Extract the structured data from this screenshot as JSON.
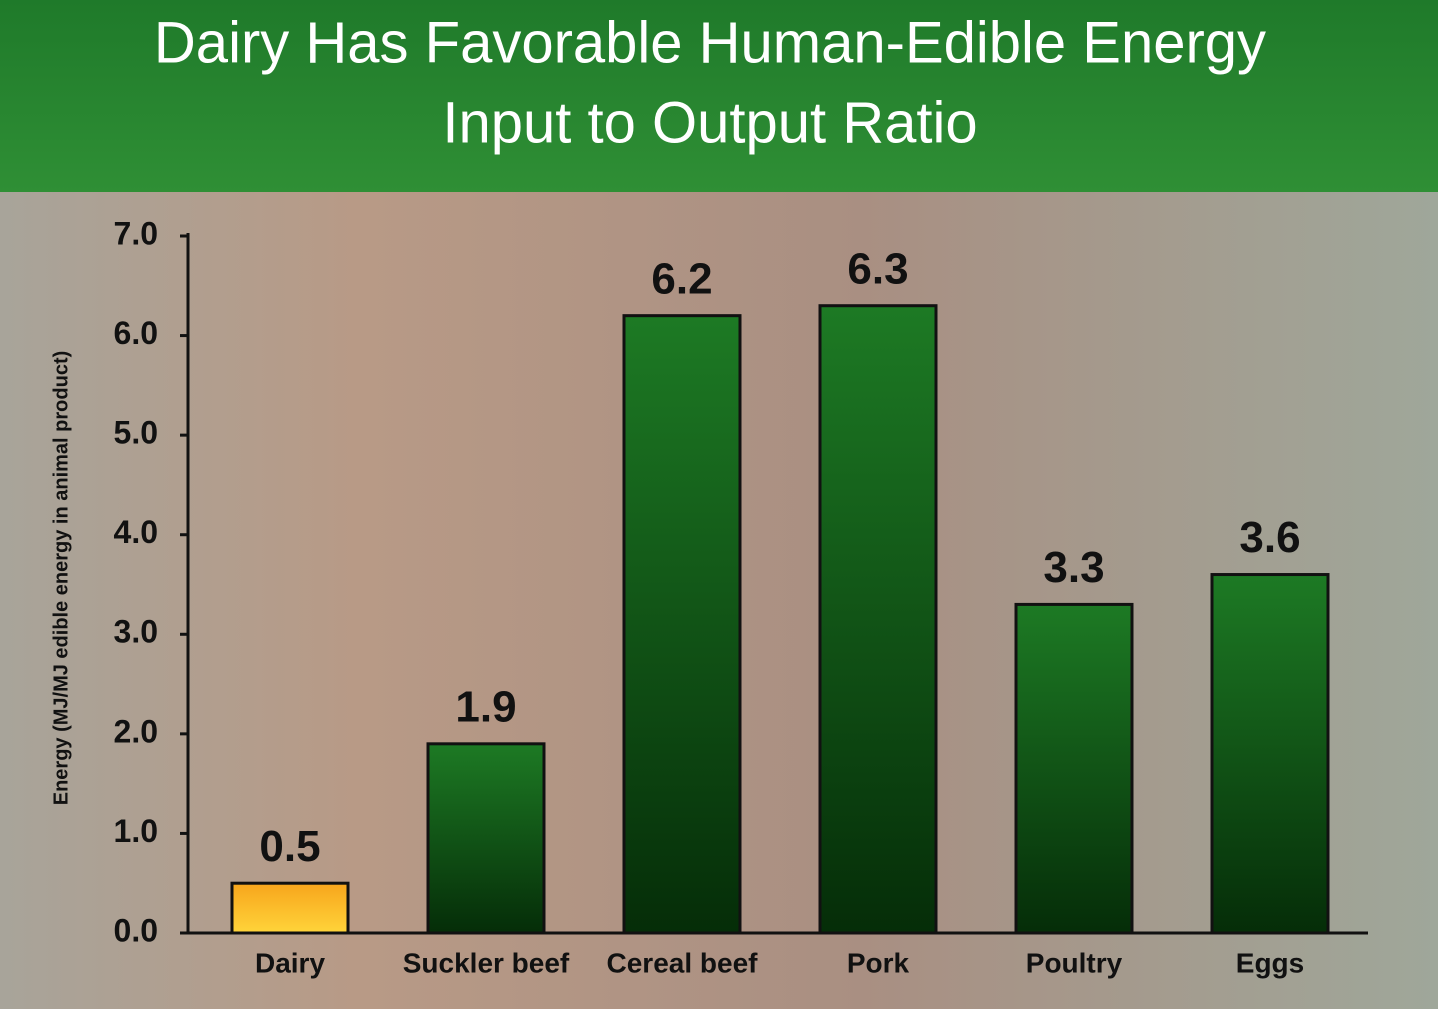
{
  "chart_data": {
    "type": "bar",
    "title": [
      "Dairy Has Favorable Human-Edible Energy",
      "Input to Output Ratio"
    ],
    "y_label": "Energy (MJ/MJ edible energy in animal product)",
    "categories": [
      "Dairy",
      "Suckler beef",
      "Cereal beef",
      "Pork",
      "Poultry",
      "Eggs"
    ],
    "values": [
      0.5,
      1.9,
      6.2,
      6.3,
      3.3,
      3.6
    ],
    "colors": [
      "#f7a51c",
      "#1d7a24",
      "#1d7a24",
      "#1d7a24",
      "#1d7a24",
      "#1d7a24"
    ],
    "ylim": [
      0,
      7
    ],
    "yticks": [
      {
        "value": 0,
        "label": "0.0"
      },
      {
        "value": 1,
        "label": "1.0"
      },
      {
        "value": 2,
        "label": "2.0"
      },
      {
        "value": 3,
        "label": "3.0"
      },
      {
        "value": 4,
        "label": "4.0"
      },
      {
        "value": 5,
        "label": "5.0"
      },
      {
        "value": 6,
        "label": "6.0"
      },
      {
        "value": 7,
        "label": "7.0"
      }
    ],
    "grid": false
  }
}
